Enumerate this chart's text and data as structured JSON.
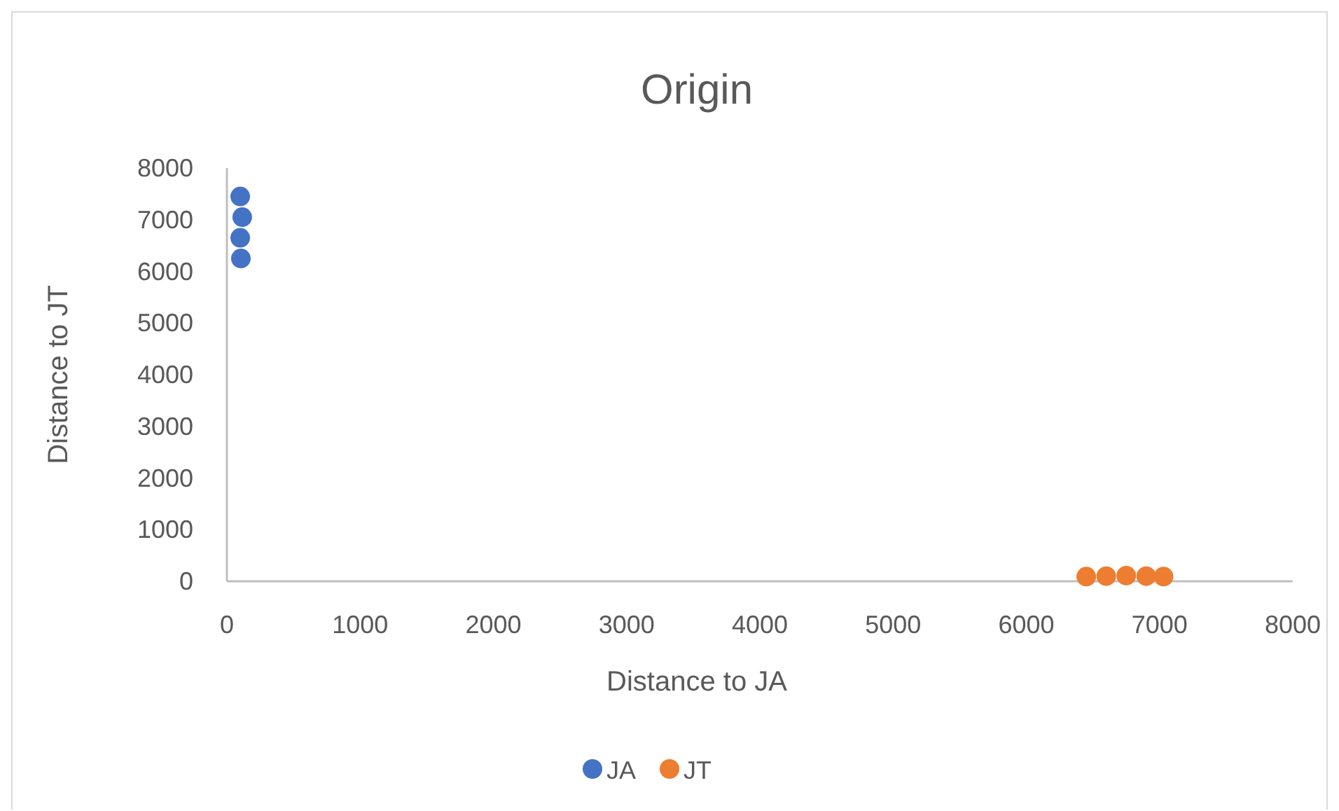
{
  "chart_data": {
    "type": "scatter",
    "title": "Origin",
    "xlabel": "Distance to JA",
    "ylabel": "Distance to JT",
    "xlim": [
      0,
      8000
    ],
    "ylim": [
      0,
      8000
    ],
    "xticks": [
      0,
      1000,
      2000,
      3000,
      4000,
      5000,
      6000,
      7000,
      8000
    ],
    "yticks": [
      0,
      1000,
      2000,
      3000,
      4000,
      5000,
      6000,
      7000,
      8000
    ],
    "grid": false,
    "legend": "bottom",
    "marker": "circle",
    "series": [
      {
        "name": "JA",
        "color": "#4472c4",
        "x": [
          100,
          115,
          100,
          105
        ],
        "values": [
          7450,
          7050,
          6650,
          6250
        ]
      },
      {
        "name": "JT",
        "color": "#ed7d31",
        "x": [
          6450,
          6600,
          6750,
          6900,
          7030
        ],
        "values": [
          90,
          100,
          110,
          100,
          90
        ]
      }
    ]
  }
}
